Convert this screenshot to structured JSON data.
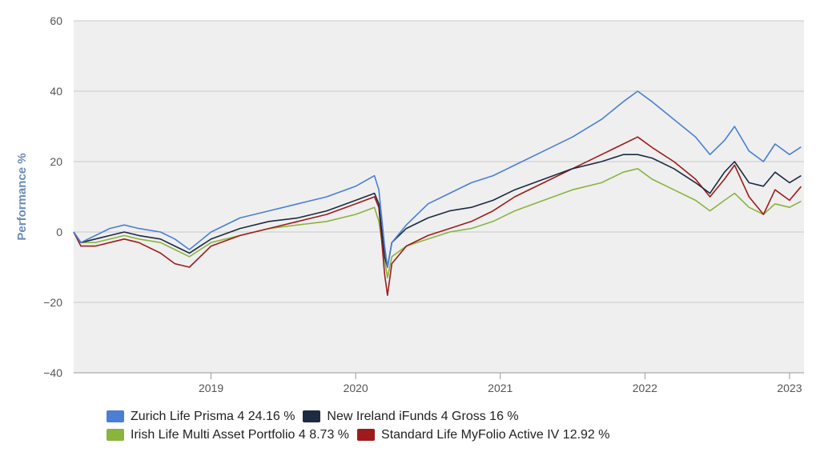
{
  "chart_data": {
    "type": "line",
    "ylabel": "Performance %",
    "xlabel": "",
    "ylim": [
      -40,
      60
    ],
    "yticks": [
      -40,
      -20,
      0,
      20,
      40,
      60
    ],
    "ytick_labels": [
      "−40",
      "−20",
      "0",
      "20",
      "40",
      "60"
    ],
    "xlim": [
      2018.05,
      2023.1
    ],
    "xticks": [
      2019,
      2020,
      2021,
      2022,
      2023
    ],
    "xtick_labels": [
      "2019",
      "2020",
      "2021",
      "2022",
      "2023"
    ],
    "grid": true,
    "legend_position": "bottom",
    "series": [
      {
        "name": "Zurich Life Prisma 4",
        "legend_label": "Zurich Life Prisma 4 24.16 %",
        "color": "#4a7fd4",
        "final_value": 24.16,
        "x": [
          2018.05,
          2018.1,
          2018.2,
          2018.3,
          2018.4,
          2018.5,
          2018.65,
          2018.75,
          2018.85,
          2019.0,
          2019.2,
          2019.4,
          2019.6,
          2019.8,
          2020.0,
          2020.13,
          2020.16,
          2020.2,
          2020.22,
          2020.25,
          2020.35,
          2020.5,
          2020.65,
          2020.8,
          2020.95,
          2021.1,
          2021.3,
          2021.5,
          2021.7,
          2021.85,
          2021.95,
          2022.05,
          2022.2,
          2022.35,
          2022.45,
          2022.55,
          2022.62,
          2022.72,
          2022.82,
          2022.9,
          2023.0,
          2023.08
        ],
        "y": [
          0,
          -3,
          -1,
          1,
          2,
          1,
          0,
          -2,
          -5,
          0,
          4,
          6,
          8,
          10,
          13,
          16,
          12,
          -4,
          -10,
          -3,
          2,
          8,
          11,
          14,
          16,
          19,
          23,
          27,
          32,
          37,
          40,
          37,
          32,
          27,
          22,
          26,
          30,
          23,
          20,
          25,
          22,
          24.16
        ]
      },
      {
        "name": "New Ireland iFunds 4 Gross",
        "legend_label": "New Ireland iFunds 4 Gross 16 %",
        "color": "#1c2a42",
        "final_value": 16,
        "x": [
          2018.05,
          2018.1,
          2018.2,
          2018.3,
          2018.4,
          2018.5,
          2018.65,
          2018.75,
          2018.85,
          2019.0,
          2019.2,
          2019.4,
          2019.6,
          2019.8,
          2020.0,
          2020.13,
          2020.16,
          2020.2,
          2020.22,
          2020.25,
          2020.35,
          2020.5,
          2020.65,
          2020.8,
          2020.95,
          2021.1,
          2021.3,
          2021.5,
          2021.7,
          2021.85,
          2021.95,
          2022.05,
          2022.2,
          2022.35,
          2022.45,
          2022.55,
          2022.62,
          2022.72,
          2022.82,
          2022.9,
          2023.0,
          2023.08
        ],
        "y": [
          0,
          -3,
          -2,
          -1,
          0,
          -1,
          -2,
          -4,
          -6,
          -2,
          1,
          3,
          4,
          6,
          9,
          11,
          8,
          -7,
          -10,
          -3,
          1,
          4,
          6,
          7,
          9,
          12,
          15,
          18,
          20,
          22,
          22,
          21,
          18,
          14,
          11,
          17,
          20,
          14,
          13,
          17,
          14,
          16
        ]
      },
      {
        "name": "Irish Life Multi Asset Portfolio 4",
        "legend_label": "Irish Life Multi Asset Portfolio 4 8.73 %",
        "color": "#8ab43e",
        "final_value": 8.73,
        "x": [
          2018.05,
          2018.1,
          2018.2,
          2018.3,
          2018.4,
          2018.5,
          2018.65,
          2018.75,
          2018.85,
          2019.0,
          2019.2,
          2019.4,
          2019.6,
          2019.8,
          2020.0,
          2020.13,
          2020.16,
          2020.2,
          2020.22,
          2020.25,
          2020.35,
          2020.5,
          2020.65,
          2020.8,
          2020.95,
          2021.1,
          2021.3,
          2021.5,
          2021.7,
          2021.85,
          2021.95,
          2022.05,
          2022.2,
          2022.35,
          2022.45,
          2022.55,
          2022.62,
          2022.72,
          2022.82,
          2022.9,
          2023.0,
          2023.08
        ],
        "y": [
          0,
          -3,
          -3,
          -2,
          -1,
          -2,
          -3,
          -5,
          -7,
          -3,
          -1,
          1,
          2,
          3,
          5,
          7,
          3,
          -8,
          -13,
          -7,
          -4,
          -2,
          0,
          1,
          3,
          6,
          9,
          12,
          14,
          17,
          18,
          15,
          12,
          9,
          6,
          9,
          11,
          7,
          5,
          8,
          7,
          8.73
        ]
      },
      {
        "name": "Standard Life MyFolio Active IV",
        "legend_label": "Standard Life MyFolio Active IV 12.92 %",
        "color": "#9e1b1b",
        "final_value": 12.92,
        "x": [
          2018.05,
          2018.1,
          2018.2,
          2018.3,
          2018.4,
          2018.5,
          2018.65,
          2018.75,
          2018.85,
          2019.0,
          2019.2,
          2019.4,
          2019.6,
          2019.8,
          2020.0,
          2020.13,
          2020.16,
          2020.2,
          2020.22,
          2020.25,
          2020.35,
          2020.5,
          2020.65,
          2020.8,
          2020.95,
          2021.1,
          2021.3,
          2021.5,
          2021.7,
          2021.85,
          2021.95,
          2022.05,
          2022.2,
          2022.35,
          2022.45,
          2022.55,
          2022.62,
          2022.72,
          2022.82,
          2022.9,
          2023.0,
          2023.08
        ],
        "y": [
          0,
          -4,
          -4,
          -3,
          -2,
          -3,
          -6,
          -9,
          -10,
          -4,
          -1,
          1,
          3,
          5,
          8,
          10,
          7,
          -12,
          -18,
          -9,
          -4,
          -1,
          1,
          3,
          6,
          10,
          14,
          18,
          22,
          25,
          27,
          24,
          20,
          15,
          10,
          15,
          19,
          10,
          5,
          12,
          9,
          12.92
        ]
      }
    ]
  }
}
